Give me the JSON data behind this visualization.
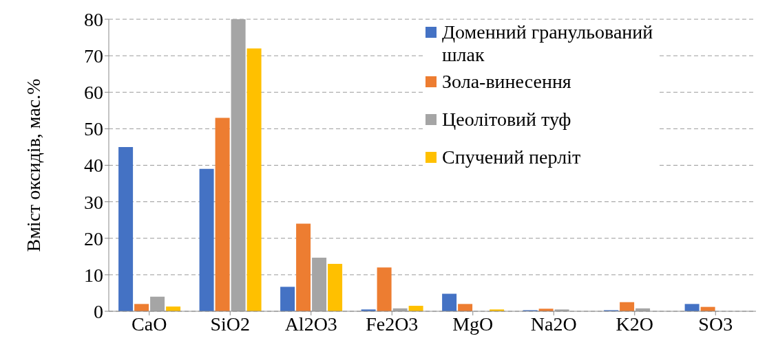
{
  "chart_data": {
    "type": "bar",
    "ylabel": "Вміст оксидів, мас.%",
    "categories": [
      "CaO",
      "SiO2",
      "Al2O3",
      "Fe2O3",
      "MgO",
      "Na2O",
      "K2O",
      "SO3"
    ],
    "series": [
      {
        "name": "Доменний гранульований шлак",
        "color": "#4472c4",
        "values": [
          45,
          39,
          6.7,
          0.5,
          4.8,
          0.3,
          0.3,
          2
        ]
      },
      {
        "name": "Зола-винесення",
        "color": "#ed7d31",
        "values": [
          2,
          53,
          24,
          12,
          2,
          0.7,
          2.5,
          1.2
        ]
      },
      {
        "name": "Цеолітовий туф",
        "color": "#a5a5a5",
        "values": [
          4,
          80,
          14.7,
          0.8,
          0,
          0.5,
          0.8,
          0
        ]
      },
      {
        "name": "Спучений перліт",
        "color": "#ffc000",
        "values": [
          1.3,
          72,
          13,
          1.5,
          0.5,
          0,
          0,
          0
        ]
      }
    ],
    "ylim": [
      0,
      80
    ],
    "yticks": [
      0,
      10,
      20,
      30,
      40,
      50,
      60,
      70,
      80
    ],
    "grid": "y",
    "legend": "top right"
  }
}
